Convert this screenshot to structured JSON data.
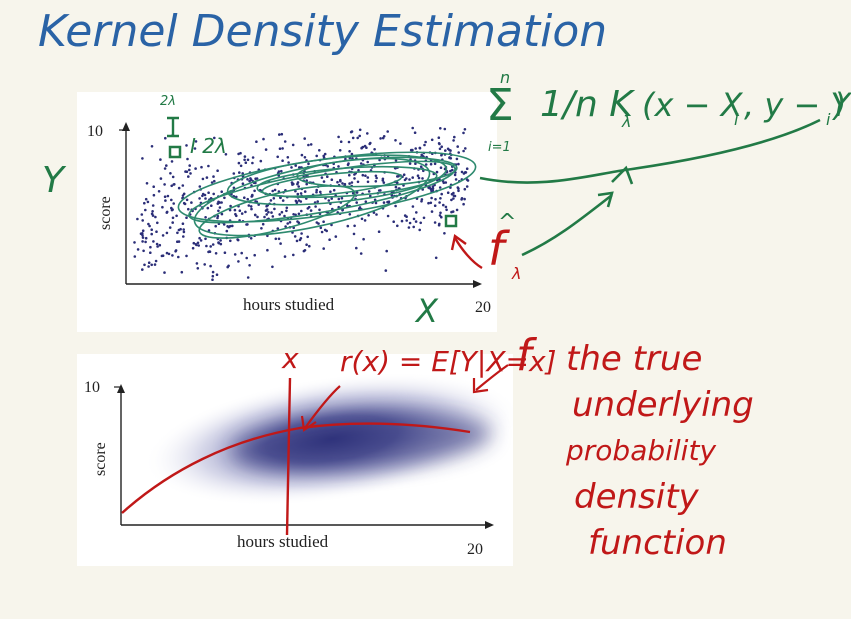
{
  "title": "Kernel Density Estimation",
  "colors": {
    "ink_blue": "#2a63a6",
    "ink_green": "#227a46",
    "ink_red": "#c01818",
    "dots": "#2b2e78",
    "ellipse": "#2e8a6f",
    "density": "#2b2e78"
  },
  "top_plot": {
    "y_tick": "10",
    "x_tick": "20",
    "ylabel": "score",
    "xlabel": "hours studied"
  },
  "bottom_plot": {
    "y_tick": "10",
    "x_tick": "20",
    "ylabel": "score",
    "xlabel": "hours studied"
  },
  "annotations": {
    "y_var": "Y",
    "x_var": "X",
    "bandwidth_label": "2λ",
    "kernel_box_label": "I 2λ",
    "sum_upper": "n",
    "sum_sign": "Σ",
    "sum_lower": "i=1",
    "formula": "1/n K",
    "formula_sub": "λ",
    "formula_args": "(x − X",
    "formula_args_sub": "i",
    "formula_args2": ", y − Y",
    "formula_args_sub2": "i",
    "formula_close": ")",
    "f_hat": "f",
    "f_hat_sub": "λ",
    "x_point": "x",
    "regression": "r(x) = E[Y|X=x]",
    "f_label": "f",
    "f_desc_lines": [
      "the true",
      "underlying",
      "probability",
      "density",
      "function"
    ]
  }
}
